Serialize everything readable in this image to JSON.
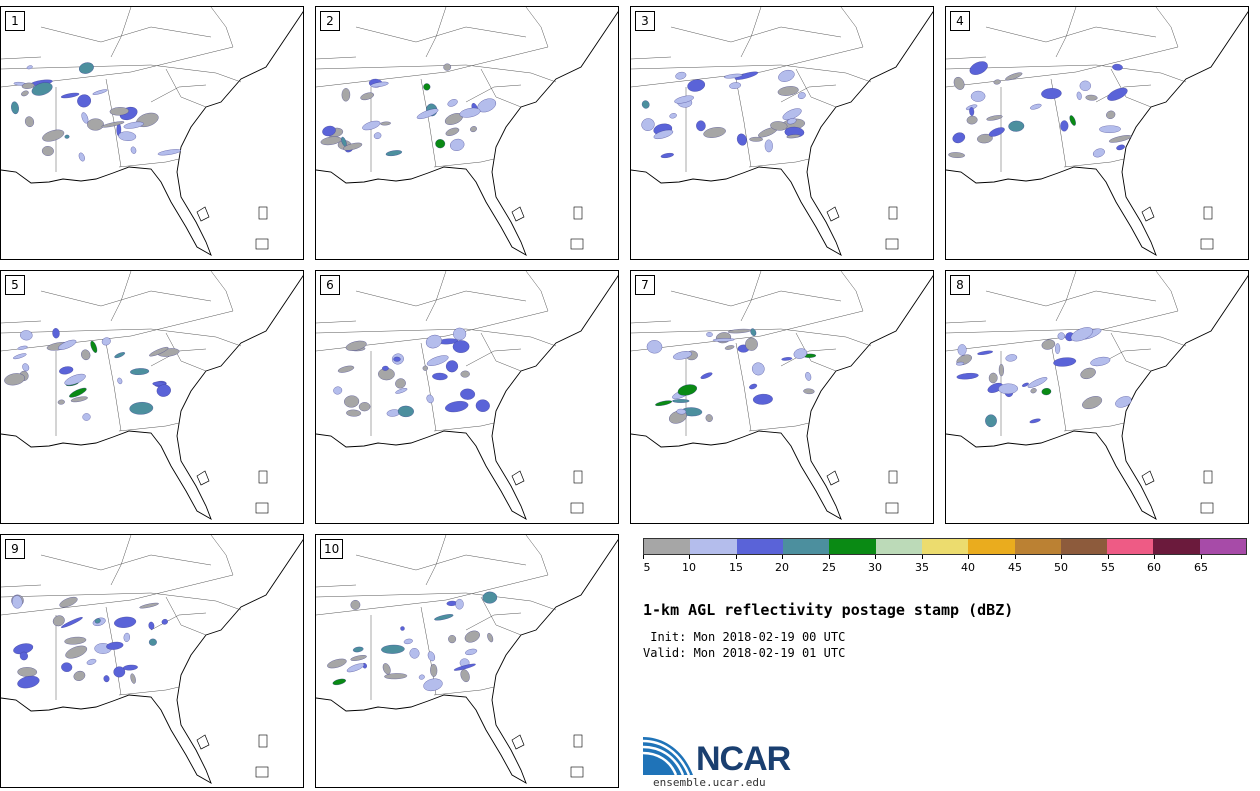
{
  "figure": {
    "title": "1-km AGL reflectivity postage stamp (dBZ)",
    "init_line": " Init: Mon 2018-02-19 00 UTC",
    "valid_line": "Valid: Mon 2018-02-19 01 UTC",
    "logo_text": "NCAR",
    "logo_url": "ensemble.ucar.edu"
  },
  "colorbar": {
    "units": "dBZ",
    "tick_labels": [
      "5",
      "10",
      "15",
      "20",
      "25",
      "30",
      "35",
      "40",
      "45",
      "50",
      "55",
      "60",
      "65"
    ],
    "colors": [
      "#a6a6a6",
      "#b4bdec",
      "#5a63d8",
      "#4c8f9e",
      "#0a8a14",
      "#bcdab8",
      "#ecdc6e",
      "#eaac1e",
      "#bb8133",
      "#8d5b3c",
      "#ee5b85",
      "#6b1a3c",
      "#a74ba8"
    ],
    "min": 5,
    "max": 70
  },
  "panels": [
    {
      "label": "1"
    },
    {
      "label": "2"
    },
    {
      "label": "3"
    },
    {
      "label": "4"
    },
    {
      "label": "5"
    },
    {
      "label": "6"
    },
    {
      "label": "7"
    },
    {
      "label": "8"
    },
    {
      "label": "9"
    },
    {
      "label": "10"
    }
  ],
  "map": {
    "region": "Southeastern United States",
    "field": "simulated reflectivity"
  }
}
